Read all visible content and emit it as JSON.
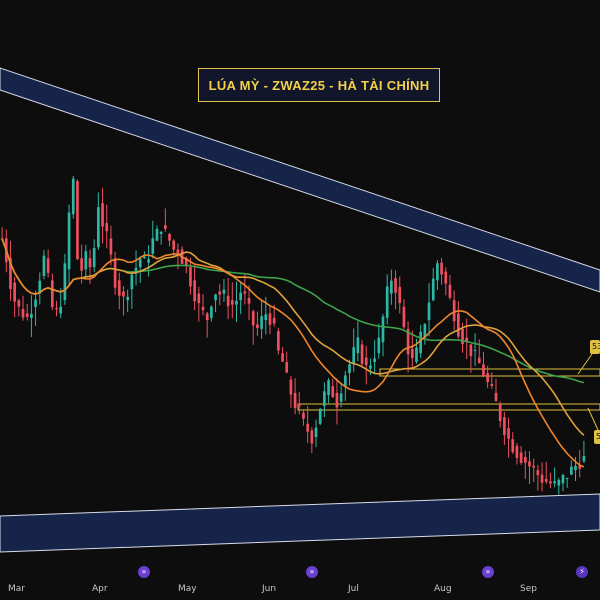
{
  "title": "LÚA MỲ - ZWAZ25 - HÀ TÀI CHÍNH",
  "colors": {
    "background": "#0d0d0d",
    "up": "#2bb8a6",
    "down": "#ef4f5f",
    "ma_fast": "#f0862c",
    "ma_mid": "#e0a23c",
    "ma_slow": "#3fa34d",
    "channel_fill": "#17244a",
    "channel_edge": "#d8dcea",
    "zone_edge": "#e0c040"
  },
  "chart_data": {
    "type": "candlestick",
    "x_axis_labels": [
      "Mar",
      "Apr",
      "May",
      "Jun",
      "Jul",
      "Aug",
      "Sep"
    ],
    "event_icons": [
      "calendar-icon",
      "calendar-icon",
      "calendar-icon",
      "calendar-icon",
      "lightning-icon"
    ],
    "price_tags": [
      "53",
      "5"
    ],
    "candles_per_month": 21,
    "seed_prices": [
      318,
      300,
      278,
      262,
      254,
      250,
      246,
      256,
      268,
      284,
      300,
      280,
      255,
      250,
      262,
      290,
      340,
      370,
      300,
      290,
      300,
      292,
      310,
      350,
      332,
      318,
      300,
      280,
      270,
      262,
      272,
      286,
      292,
      300,
      296,
      304,
      316,
      322,
      330,
      322,
      316,
      308,
      308,
      300,
      292,
      280,
      268,
      256,
      250,
      246,
      262,
      270,
      268,
      266,
      262,
      258,
      262,
      270,
      264,
      252,
      240,
      236,
      244,
      250,
      246,
      234,
      214,
      206,
      190,
      178,
      168,
      160,
      150,
      144,
      138,
      150,
      166,
      176,
      184,
      178,
      170,
      184,
      196,
      204,
      214,
      222,
      210,
      200,
      206,
      214,
      224,
      246,
      268,
      282,
      274,
      256,
      236,
      218,
      206,
      214,
      228,
      244,
      262,
      280,
      296,
      288,
      276,
      262,
      250,
      236,
      228,
      222,
      216,
      210,
      204,
      196,
      186,
      178,
      168,
      156,
      146,
      136,
      130,
      124,
      120,
      116,
      112,
      108,
      104,
      100,
      98,
      96,
      94,
      96,
      100,
      104,
      108,
      112,
      116,
      118
    ]
  }
}
